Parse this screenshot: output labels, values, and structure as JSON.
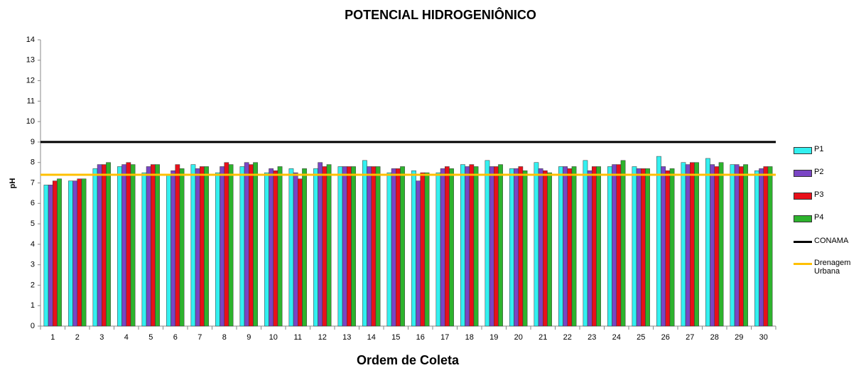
{
  "chart_data": {
    "type": "bar",
    "title": "POTENCIAL HIDROGENIÔNICO",
    "x_label": "Ordem de Coleta",
    "y_label": "pH",
    "categories": [
      "1",
      "2",
      "3",
      "4",
      "5",
      "6",
      "7",
      "8",
      "9",
      "10",
      "11",
      "12",
      "13",
      "14",
      "15",
      "16",
      "17",
      "18",
      "19",
      "20",
      "21",
      "22",
      "23",
      "24",
      "25",
      "26",
      "27",
      "28",
      "29",
      "30"
    ],
    "series": [
      {
        "name": "P1",
        "color": "#33f0f0",
        "values": [
          6.9,
          7.1,
          7.7,
          7.8,
          7.5,
          7.4,
          7.9,
          7.5,
          7.8,
          7.5,
          7.7,
          7.7,
          7.8,
          8.1,
          7.5,
          7.6,
          7.5,
          7.9,
          8.1,
          7.7,
          8.0,
          7.8,
          8.1,
          7.8,
          7.8,
          8.3,
          8.0,
          8.2,
          7.9,
          7.6
        ]
      },
      {
        "name": "P2",
        "color": "#7a45c4",
        "values": [
          6.9,
          7.1,
          7.9,
          7.9,
          7.8,
          7.6,
          7.7,
          7.8,
          8.0,
          7.7,
          7.5,
          8.0,
          7.8,
          7.8,
          7.7,
          7.1,
          7.7,
          7.8,
          7.8,
          7.7,
          7.7,
          7.8,
          7.6,
          7.9,
          7.7,
          7.8,
          7.9,
          7.9,
          7.9,
          7.7
        ]
      },
      {
        "name": "P3",
        "color": "#e8101a",
        "values": [
          7.1,
          7.2,
          7.9,
          8.0,
          7.9,
          7.9,
          7.8,
          8.0,
          7.9,
          7.6,
          7.2,
          7.8,
          7.8,
          7.8,
          7.7,
          7.5,
          7.8,
          7.9,
          7.8,
          7.8,
          7.6,
          7.7,
          7.8,
          7.9,
          7.7,
          7.6,
          8.0,
          7.8,
          7.8,
          7.8
        ]
      },
      {
        "name": "P4",
        "color": "#2db32d",
        "values": [
          7.2,
          7.2,
          8.0,
          7.9,
          7.9,
          7.7,
          7.8,
          7.9,
          8.0,
          7.8,
          7.7,
          7.9,
          7.8,
          7.8,
          7.8,
          7.5,
          7.7,
          7.8,
          7.9,
          7.6,
          7.5,
          7.8,
          7.8,
          8.1,
          7.7,
          7.7,
          8.0,
          8.0,
          7.9,
          7.8
        ]
      }
    ],
    "reference_lines": [
      {
        "name": "CONAMA",
        "color": "#000000",
        "value": 9
      },
      {
        "name": "Drenagem Urbana",
        "color": "#ffc000",
        "value": 7.4
      }
    ],
    "ylim": [
      0,
      14
    ],
    "yticks": [
      0,
      1,
      2,
      3,
      4,
      5,
      6,
      7,
      8,
      9,
      10,
      11,
      12,
      13,
      14
    ],
    "grid": false
  }
}
